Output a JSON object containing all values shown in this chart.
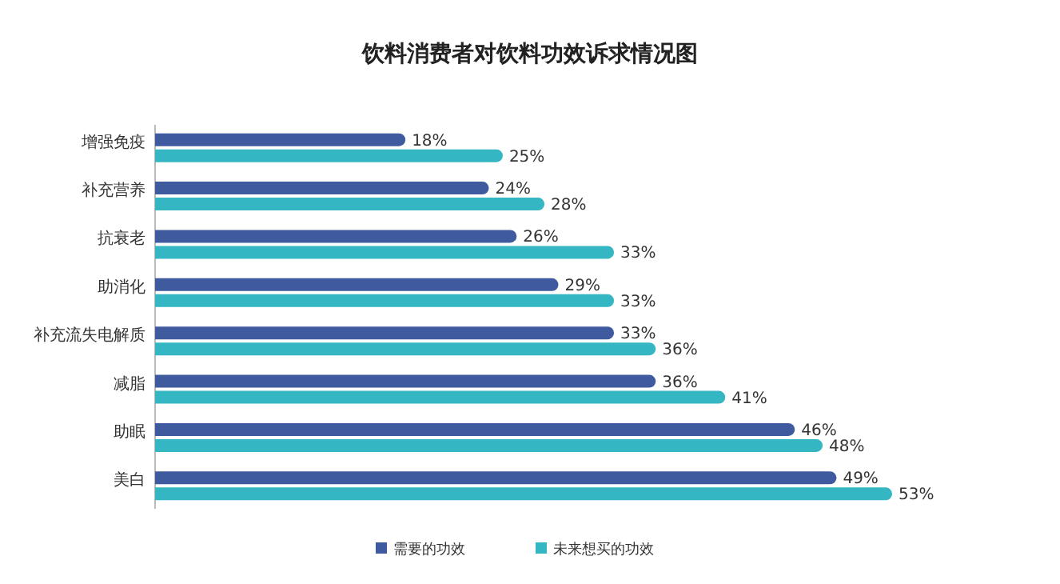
{
  "chart_data": {
    "type": "bar",
    "orientation": "horizontal",
    "title": "饮料消费者对饮料功效诉求情况图",
    "categories": [
      "增强免疫",
      "补充营养",
      "抗衰老",
      "助消化",
      "补充流失电解质",
      "减脂",
      "助眠",
      "美白"
    ],
    "series": [
      {
        "name": "需要的功效",
        "color": "#3f5a9e",
        "values": [
          18,
          24,
          26,
          29,
          33,
          36,
          46,
          49
        ],
        "value_labels": [
          "18%",
          "24%",
          "26%",
          "29%",
          "33%",
          "36%",
          "46%",
          "49%"
        ]
      },
      {
        "name": "未来想买的功效",
        "color": "#35b6c3",
        "values": [
          25,
          28,
          33,
          33,
          36,
          41,
          48,
          53
        ],
        "value_labels": [
          "25%",
          "28%",
          "33%",
          "33%",
          "36%",
          "41%",
          "48%",
          "53%"
        ]
      }
    ],
    "legend": "bottom",
    "grid": false
  }
}
